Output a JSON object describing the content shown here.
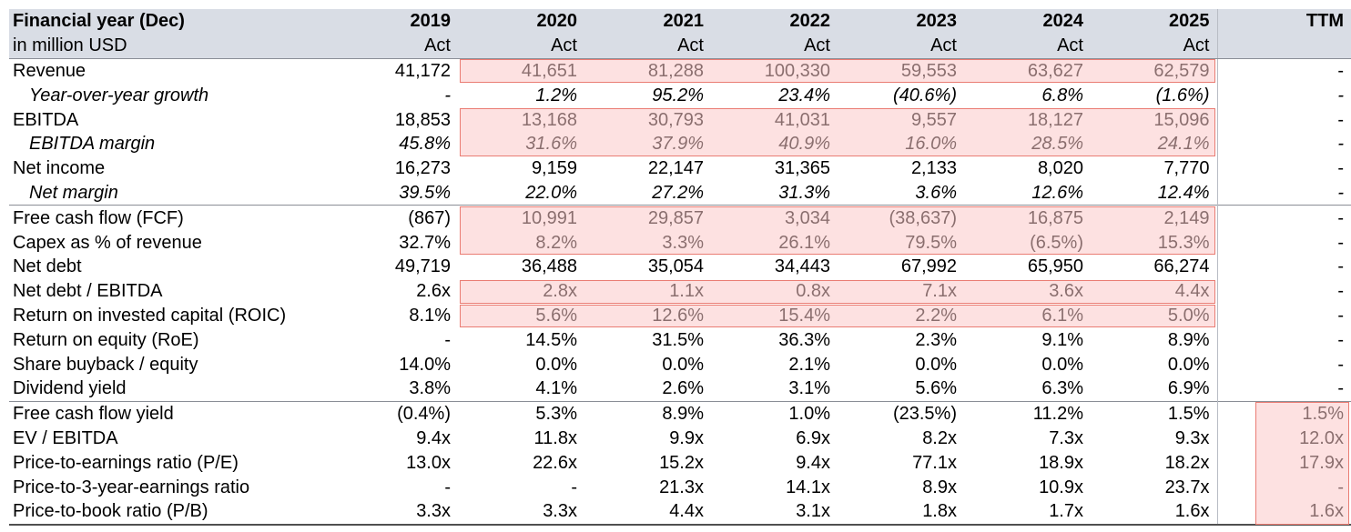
{
  "header": {
    "label_line1": "Financial year (Dec)",
    "label_line2": "in million USD",
    "years": [
      "2019",
      "2020",
      "2021",
      "2022",
      "2023",
      "2024",
      "2025"
    ],
    "year_types": [
      "Act",
      "Act",
      "Act",
      "Act",
      "Act",
      "Act",
      "Act"
    ],
    "ttm": "TTM"
  },
  "rows": [
    {
      "label": "Revenue",
      "values": [
        "41,172",
        "41,651",
        "81,288",
        "100,330",
        "59,553",
        "63,627",
        "62,579"
      ],
      "ttm": "-"
    },
    {
      "label": "Year-over-year growth",
      "values": [
        "-",
        "1.2%",
        "95.2%",
        "23.4%",
        "(40.6%)",
        "6.8%",
        "(1.6%)"
      ],
      "ttm": "-"
    },
    {
      "label": "EBITDA",
      "values": [
        "18,853",
        "13,168",
        "30,793",
        "41,031",
        "9,557",
        "18,127",
        "15,096"
      ],
      "ttm": "-"
    },
    {
      "label": "EBITDA margin",
      "values": [
        "45.8%",
        "31.6%",
        "37.9%",
        "40.9%",
        "16.0%",
        "28.5%",
        "24.1%"
      ],
      "ttm": "-"
    },
    {
      "label": "Net income",
      "values": [
        "16,273",
        "9,159",
        "22,147",
        "31,365",
        "2,133",
        "8,020",
        "7,770"
      ],
      "ttm": "-"
    },
    {
      "label": "Net margin",
      "values": [
        "39.5%",
        "22.0%",
        "27.2%",
        "31.3%",
        "3.6%",
        "12.6%",
        "12.4%"
      ],
      "ttm": "-"
    },
    {
      "label": "Free cash flow (FCF)",
      "values": [
        "(867)",
        "10,991",
        "29,857",
        "3,034",
        "(38,637)",
        "16,875",
        "2,149"
      ],
      "ttm": "-"
    },
    {
      "label": "Capex as % of revenue",
      "values": [
        "32.7%",
        "8.2%",
        "3.3%",
        "26.1%",
        "79.5%",
        "(6.5%)",
        "15.3%"
      ],
      "ttm": "-"
    },
    {
      "label": "Net debt",
      "values": [
        "49,719",
        "36,488",
        "35,054",
        "34,443",
        "67,992",
        "65,950",
        "66,274"
      ],
      "ttm": "-"
    },
    {
      "label": "Net debt / EBITDA",
      "values": [
        "2.6x",
        "2.8x",
        "1.1x",
        "0.8x",
        "7.1x",
        "3.6x",
        "4.4x"
      ],
      "ttm": "-"
    },
    {
      "label": "Return on invested capital (ROIC)",
      "values": [
        "8.1%",
        "5.6%",
        "12.6%",
        "15.4%",
        "2.2%",
        "6.1%",
        "5.0%"
      ],
      "ttm": "-"
    },
    {
      "label": "Return on equity (RoE)",
      "values": [
        "-",
        "14.5%",
        "31.5%",
        "36.3%",
        "2.3%",
        "9.1%",
        "8.9%"
      ],
      "ttm": "-"
    },
    {
      "label": "Share buyback / equity",
      "values": [
        "14.0%",
        "0.0%",
        "0.0%",
        "2.1%",
        "0.0%",
        "0.0%",
        "0.0%"
      ],
      "ttm": "-"
    },
    {
      "label": "Dividend yield",
      "values": [
        "3.8%",
        "4.1%",
        "2.6%",
        "3.1%",
        "5.6%",
        "6.3%",
        "6.9%"
      ],
      "ttm": "-"
    },
    {
      "label": "Free cash flow yield",
      "values": [
        "(0.4%)",
        "5.3%",
        "8.9%",
        "1.0%",
        "(23.5%)",
        "11.2%",
        "1.5%"
      ],
      "ttm": "1.5%"
    },
    {
      "label": "EV / EBITDA",
      "values": [
        "9.4x",
        "11.8x",
        "9.9x",
        "6.9x",
        "8.2x",
        "7.3x",
        "9.3x"
      ],
      "ttm": "12.0x"
    },
    {
      "label": "Price-to-earnings ratio (P/E)",
      "values": [
        "13.0x",
        "22.6x",
        "15.2x",
        "9.4x",
        "77.1x",
        "18.9x",
        "18.2x"
      ],
      "ttm": "17.9x"
    },
    {
      "label": "Price-to-3-year-earnings ratio",
      "values": [
        "-",
        "-",
        "21.3x",
        "14.1x",
        "8.9x",
        "10.9x",
        "23.7x"
      ],
      "ttm": "-"
    },
    {
      "label": "Price-to-book ratio (P/B)",
      "values": [
        "3.3x",
        "3.3x",
        "4.4x",
        "3.1x",
        "1.8x",
        "1.7x",
        "1.6x"
      ],
      "ttm": "1.6x"
    }
  ],
  "colors": {
    "header_bg": "#d9dde5",
    "highlight_fill": "#fcd4d2",
    "highlight_border": "#ea7c73"
  }
}
